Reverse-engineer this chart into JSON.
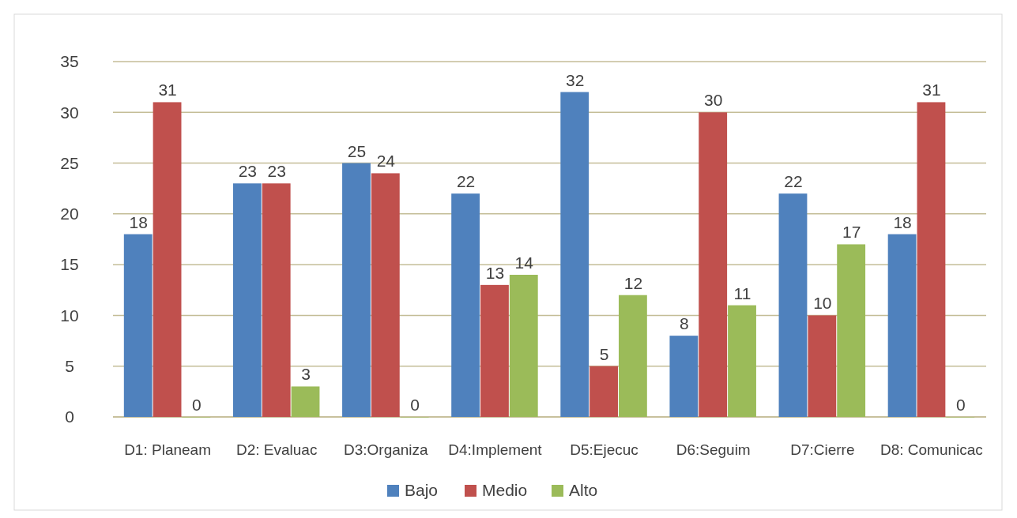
{
  "chart_data": {
    "type": "bar",
    "categories": [
      "D1: Planeam",
      "D2: Evaluac",
      "D3:Organiza",
      "D4:Implement",
      "D5:Ejecuc",
      "D6:Seguim",
      "D7:Cierre",
      "D8: Comunicac"
    ],
    "series": [
      {
        "name": "Bajo",
        "color": "#4f81bd",
        "values": [
          18,
          23,
          25,
          22,
          32,
          8,
          22,
          18
        ]
      },
      {
        "name": "Medio",
        "color": "#c0504d",
        "values": [
          31,
          23,
          24,
          13,
          5,
          30,
          10,
          31
        ]
      },
      {
        "name": "Alto",
        "color": "#9bbb59",
        "values": [
          0,
          3,
          0,
          14,
          12,
          11,
          17,
          0
        ]
      }
    ],
    "ylim": [
      0,
      35
    ],
    "yticks": [
      0,
      5,
      10,
      15,
      20,
      25,
      30,
      35
    ],
    "grid": "y",
    "legend": "bottom",
    "data_labels": true
  }
}
